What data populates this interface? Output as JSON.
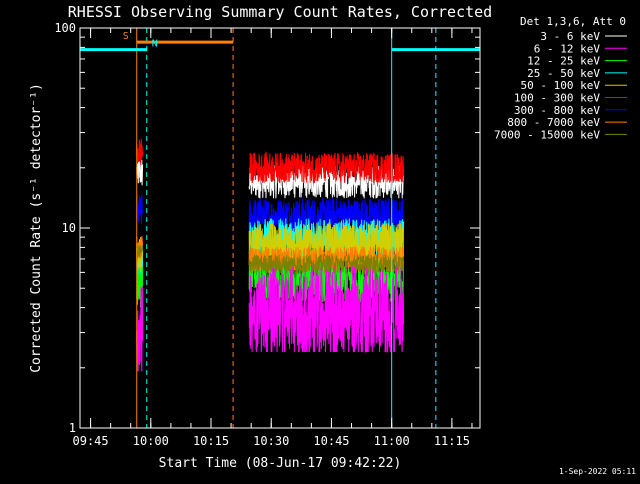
{
  "chart_data": {
    "type": "line",
    "title": "RHESSI Observing Summary Count Rates, Corrected",
    "xlabel": "Start Time (08-Jun-17 09:42:22)",
    "ylabel": "Corrected Count Rate (s⁻¹ detector⁻¹)",
    "y_scale": "log",
    "ylim": [
      1,
      100
    ],
    "xlim": [
      "09:42:22",
      "11:22:00"
    ],
    "x_ticks": [
      "09:45",
      "10:00",
      "10:15",
      "10:30",
      "10:45",
      "11:00",
      "11:15"
    ],
    "y_ticks": [
      "1",
      "10",
      "100"
    ],
    "legend_title": "Det 1,3,6, Att 0",
    "legend_position": "top-right",
    "footer": "1-Sep-2022 05:11",
    "flags": [
      {
        "label": "S",
        "start": "09:56:30",
        "end": "10:20:30",
        "level": 85,
        "color": "#ff8000"
      },
      {
        "label": "N",
        "start": "09:42:22",
        "end": "09:59:00",
        "level": 78,
        "color": "#00ffff"
      },
      {
        "label": "",
        "start": "11:00:00",
        "end": "11:22:00",
        "level": 78,
        "color": "#00ffff"
      }
    ],
    "vertical_markers": [
      {
        "time": "09:42:22",
        "style": "solid",
        "color": "#00ffff"
      },
      {
        "time": "09:56:30",
        "style": "solid",
        "color": "#ff8000"
      },
      {
        "time": "09:59:00",
        "style": "dashed",
        "color": "#00ffff"
      },
      {
        "time": "10:20:30",
        "style": "dashed",
        "color": "#ff8000"
      },
      {
        "time": "11:00:00",
        "style": "solid",
        "color": "#00ffff"
      },
      {
        "time": "11:11:00",
        "style": "dashed",
        "color": "#00ffff"
      }
    ],
    "segments": [
      {
        "start": "09:56:30",
        "end": "09:58:00"
      },
      {
        "start": "10:24:30",
        "end": "11:03:00"
      }
    ],
    "series": [
      {
        "name": "3 - 6 keV",
        "color": "#ffffff",
        "level": 17,
        "noise": 0.12,
        "first_segment_level": 19
      },
      {
        "name": "6 - 12 keV",
        "color": "#ff00ff",
        "level": 4.0,
        "noise": 0.3,
        "first_segment_level": 3.2
      },
      {
        "name": "12 - 25 keV",
        "color": "#00ff00",
        "level": 5.5,
        "noise": 0.16,
        "first_segment_level": 5.0
      },
      {
        "name": "25 - 50 keV",
        "color": "#00ffff",
        "level": 8.8,
        "noise": 0.15,
        "first_segment_level": 6.5
      },
      {
        "name": "50 - 100 keV",
        "color": "#d0d000",
        "level": 8.2,
        "noise": 0.16,
        "first_segment_level": 7.0
      },
      {
        "name": "100 - 300 keV",
        "color": "#ff0000",
        "level": 20,
        "noise": 0.11,
        "first_segment_level": 24
      },
      {
        "name": "300 - 800 keV",
        "color": "#0000ff",
        "level": 11.5,
        "noise": 0.13,
        "first_segment_level": 12
      },
      {
        "name": "800 - 7000 keV",
        "color": "#ff8000",
        "level": 7.0,
        "noise": 0.09,
        "first_segment_level": 8.0
      },
      {
        "name": "7000 - 15000 keV",
        "color": "#808000",
        "level": 6.6,
        "noise": 0.07,
        "first_segment_level": 7.5
      }
    ]
  }
}
